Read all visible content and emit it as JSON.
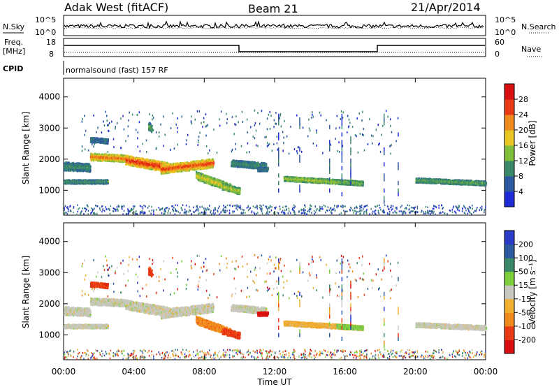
{
  "header": {
    "station": "Adak West (fitACF)",
    "beam": "Beam 21",
    "date": "21/Apr/2014"
  },
  "panels": {
    "nsky": {
      "label": "N.Sky",
      "ticks": [
        "10^5",
        "10^0"
      ],
      "right_label": "N.Search",
      "right_ticks": [
        "10^5",
        "10^0"
      ]
    },
    "freq": {
      "label_top": "Freq.",
      "label_bottom": "[MHz]",
      "ticks": [
        "18",
        "8"
      ],
      "right_label": "Nave",
      "right_ticks": [
        "60",
        "0"
      ]
    },
    "cpid": {
      "label": "CPID",
      "text": "normalsound (fast) 157 RF"
    }
  },
  "chart_data": [
    {
      "type": "heatmap",
      "name": "power",
      "ylabel": "Slant Range [km]",
      "ylim": [
        200,
        4600
      ],
      "yticks": [
        "1000",
        "2000",
        "3000",
        "4000"
      ],
      "colorbar": {
        "label": "Power [dB]",
        "ticks": [
          "4",
          "8",
          "12",
          "16",
          "20",
          "24",
          "28"
        ],
        "colors": [
          "#1f2bd6",
          "#2d5a9e",
          "#3a8a6a",
          "#7fbf3c",
          "#e8c624",
          "#f08a1c",
          "#e83a14",
          "#d81010"
        ]
      }
    },
    {
      "type": "heatmap",
      "name": "velocity",
      "ylabel": "Slant Range [km]",
      "ylim": [
        200,
        4600
      ],
      "yticks": [
        "1000",
        "2000",
        "3000",
        "4000"
      ],
      "colorbar": {
        "label": "Velocity [m s⁻¹]",
        "ticks": [
          "200",
          "100",
          "50",
          "15",
          "-15",
          "-50",
          "-100",
          "-200"
        ],
        "colors": [
          "#2a3cc8",
          "#2d5a9e",
          "#3a8a6a",
          "#7ccf3a",
          "#c8c8c0",
          "#f0b030",
          "#f08a1c",
          "#e83a14",
          "#d81010"
        ]
      }
    }
  ],
  "xaxis": {
    "label": "Time UT",
    "ticks": [
      "00:00",
      "04:00",
      "08:00",
      "12:00",
      "16:00",
      "20:00",
      "00:00"
    ]
  }
}
